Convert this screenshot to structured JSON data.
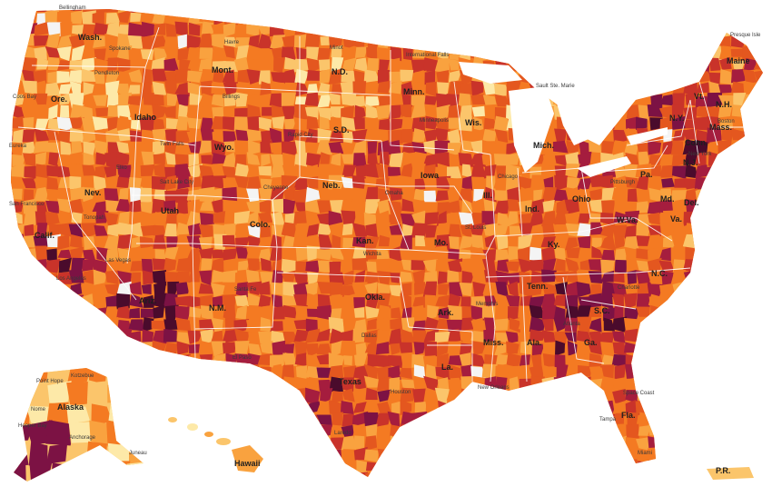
{
  "palette": [
    "#fde9a8",
    "#fbc56b",
    "#f9a23f",
    "#f47a22",
    "#e4571f",
    "#c9332a",
    "#a51d3e",
    "#7c1244",
    "#4a0b2c"
  ],
  "state_labels": [
    {
      "id": "wash",
      "text": "Wash."
    },
    {
      "id": "ore",
      "text": "Ore."
    },
    {
      "id": "calif",
      "text": "Calif."
    },
    {
      "id": "idaho",
      "text": "Idaho"
    },
    {
      "id": "nev",
      "text": "Nev."
    },
    {
      "id": "mont",
      "text": "Mont."
    },
    {
      "id": "wyo",
      "text": "Wyo."
    },
    {
      "id": "utah",
      "text": "Utah"
    },
    {
      "id": "ariz",
      "text": "Ariz."
    },
    {
      "id": "colo",
      "text": "Colo."
    },
    {
      "id": "nm",
      "text": "N.M."
    },
    {
      "id": "nd",
      "text": "N.D."
    },
    {
      "id": "sd",
      "text": "S.D."
    },
    {
      "id": "neb",
      "text": "Neb."
    },
    {
      "id": "kan",
      "text": "Kan."
    },
    {
      "id": "okla",
      "text": "Okla."
    },
    {
      "id": "texas",
      "text": "Texas"
    },
    {
      "id": "minn",
      "text": "Minn."
    },
    {
      "id": "iowa",
      "text": "Iowa"
    },
    {
      "id": "mo",
      "text": "Mo."
    },
    {
      "id": "ark",
      "text": "Ark."
    },
    {
      "id": "la",
      "text": "La."
    },
    {
      "id": "wis",
      "text": "Wis."
    },
    {
      "id": "ill",
      "text": "Ill."
    },
    {
      "id": "mich",
      "text": "Mich."
    },
    {
      "id": "ind",
      "text": "Ind."
    },
    {
      "id": "ohio",
      "text": "Ohio"
    },
    {
      "id": "ky",
      "text": "Ky."
    },
    {
      "id": "tenn",
      "text": "Tenn."
    },
    {
      "id": "miss",
      "text": "Miss."
    },
    {
      "id": "ala",
      "text": "Ala."
    },
    {
      "id": "ga",
      "text": "Ga."
    },
    {
      "id": "fla",
      "text": "Fla."
    },
    {
      "id": "sc",
      "text": "S.C."
    },
    {
      "id": "nc",
      "text": "N.C."
    },
    {
      "id": "va",
      "text": "Va."
    },
    {
      "id": "wva",
      "text": "W.Va."
    },
    {
      "id": "pa",
      "text": "Pa."
    },
    {
      "id": "ny",
      "text": "N.Y."
    },
    {
      "id": "vt",
      "text": "Vt."
    },
    {
      "id": "nh",
      "text": "N.H."
    },
    {
      "id": "maine",
      "text": "Maine"
    },
    {
      "id": "mass",
      "text": "Mass."
    },
    {
      "id": "conn",
      "text": "Conn."
    },
    {
      "id": "nj",
      "text": "N.J."
    },
    {
      "id": "md",
      "text": "Md."
    },
    {
      "id": "del",
      "text": "Del."
    },
    {
      "id": "alaska",
      "text": "Alaska"
    },
    {
      "id": "hawaii",
      "text": "Hawaii"
    },
    {
      "id": "pr",
      "text": "P.R."
    }
  ],
  "city_labels": [
    {
      "id": "bellingham",
      "text": "Bellingham"
    },
    {
      "id": "spokane",
      "text": "Spokane"
    },
    {
      "id": "pendleton",
      "text": "Pendleton"
    },
    {
      "id": "coos-bay",
      "text": "Coos Bay"
    },
    {
      "id": "eureka",
      "text": "Eureka"
    },
    {
      "id": "san-francisco",
      "text": "San Francisco"
    },
    {
      "id": "los-angeles",
      "text": "Los Angeles"
    },
    {
      "id": "las-vegas",
      "text": "Las Vegas"
    },
    {
      "id": "tonopah",
      "text": "Tonopah"
    },
    {
      "id": "elko",
      "text": "Elko"
    },
    {
      "id": "twin-falls",
      "text": "Twin Falls"
    },
    {
      "id": "havre",
      "text": "Havre"
    },
    {
      "id": "billings",
      "text": "Billings"
    },
    {
      "id": "salt-lake-city",
      "text": "Salt Lake City"
    },
    {
      "id": "cheyenne",
      "text": "Cheyenne"
    },
    {
      "id": "santa-fe",
      "text": "Santa Fe"
    },
    {
      "id": "rapid-city",
      "text": "Rapid City"
    },
    {
      "id": "minot",
      "text": "Minot"
    },
    {
      "id": "intl-falls",
      "text": "International Falls"
    },
    {
      "id": "minneapolis",
      "text": "Minneapolis"
    },
    {
      "id": "sault-ste-marie",
      "text": "Sault Ste. Marie"
    },
    {
      "id": "chicago",
      "text": "Chicago"
    },
    {
      "id": "omaha",
      "text": "Omaha"
    },
    {
      "id": "wichita",
      "text": "Wichita"
    },
    {
      "id": "st-louis",
      "text": "St. Louis"
    },
    {
      "id": "memphis",
      "text": "Memphis"
    },
    {
      "id": "dallas",
      "text": "Dallas"
    },
    {
      "id": "houston",
      "text": "Houston"
    },
    {
      "id": "el-paso",
      "text": "El Paso"
    },
    {
      "id": "laredo",
      "text": "Laredo"
    },
    {
      "id": "new-orleans",
      "text": "New Orleans"
    },
    {
      "id": "atlanta",
      "text": "Atlanta"
    },
    {
      "id": "tampa",
      "text": "Tampa"
    },
    {
      "id": "miami",
      "text": "Miami"
    },
    {
      "id": "space-coast",
      "text": "Space Coast"
    },
    {
      "id": "charlotte",
      "text": "Charlotte"
    },
    {
      "id": "pittsburgh",
      "text": "Pittsburgh"
    },
    {
      "id": "new-york",
      "text": "New York"
    },
    {
      "id": "boston",
      "text": "Boston"
    },
    {
      "id": "presque-isle",
      "text": "Presque Isle"
    },
    {
      "id": "point-hope",
      "text": "Point Hope"
    },
    {
      "id": "kotzebue",
      "text": "Kotzebue"
    },
    {
      "id": "nome",
      "text": "Nome"
    },
    {
      "id": "hooper-bay",
      "text": "Hooper Bay"
    },
    {
      "id": "anchorage",
      "text": "Anchorage"
    },
    {
      "id": "juneau",
      "text": "Juneau"
    }
  ]
}
